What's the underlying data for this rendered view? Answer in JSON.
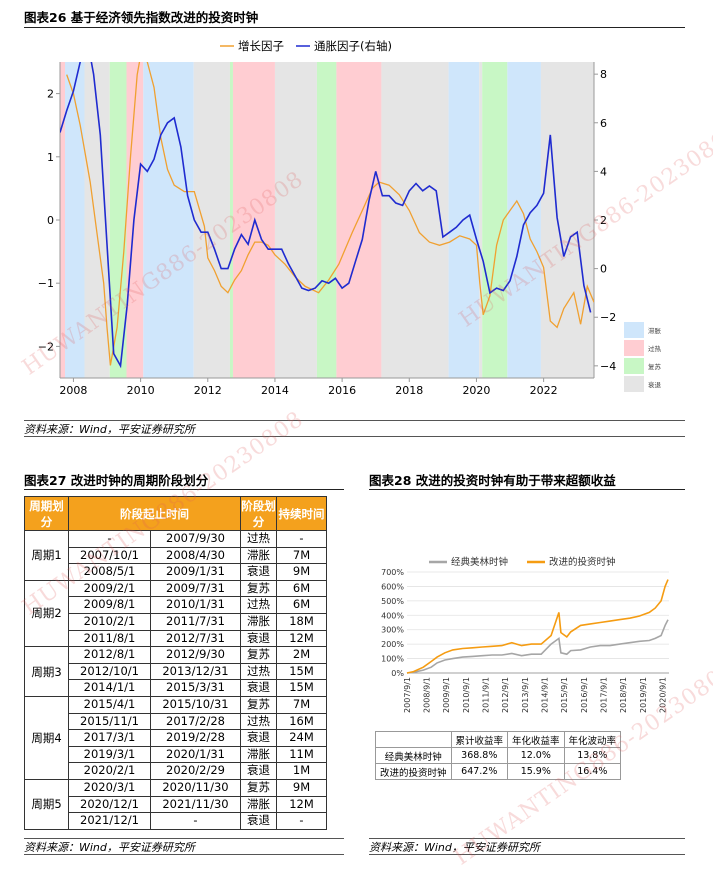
{
  "fig26": {
    "title": "图表26    基于经济领先指数改进的投资时钟",
    "source": "资料来源：Wind，平安证券研究所"
  },
  "fig27": {
    "title": "图表27    改进时钟的周期阶段划分",
    "source": "资料来源：Wind，平安证券研究所"
  },
  "fig28": {
    "title": "图表28    改进的投资时钟有助于带来超额收益",
    "source": "资料来源：Wind，平安证券研究所"
  },
  "watermark": "HUWANTING886-20230808",
  "colors": {
    "growth": "#f0a030",
    "inflation": "#1f2bd0",
    "stagflation": "#cfe6fb",
    "overheat": "#ffcdd2",
    "recovery": "#c8f7c5",
    "recession": "#e5e5e5",
    "classic": "#a6a6a6",
    "improved": "#f59c12",
    "table_header": "#f4a11d"
  },
  "chart_data": [
    {
      "type": "line",
      "legend_position": "top",
      "x_ticks": [
        "2008",
        "2010",
        "2012",
        "2014",
        "2016",
        "2018",
        "2020",
        "2022"
      ],
      "x_range": [
        2007.6,
        2023.5
      ],
      "y_left_ticks": [
        "2",
        "1",
        "0",
        "−1",
        "−2"
      ],
      "y_left_range": [
        -2.5,
        2.5
      ],
      "y_right_ticks": [
        "8",
        "6",
        "4",
        "2",
        "0",
        "−2",
        "−4"
      ],
      "y_right_range": [
        -4.5,
        8.5
      ],
      "phase_legend": [
        "滞胀",
        "过热",
        "复苏",
        "衰退"
      ],
      "phases": [
        {
          "from": 2007.6,
          "to": 2007.75,
          "phase": "过热"
        },
        {
          "from": 2007.75,
          "to": 2008.33,
          "phase": "滞胀"
        },
        {
          "from": 2008.33,
          "to": 2009.08,
          "phase": "衰退"
        },
        {
          "from": 2009.08,
          "to": 2009.58,
          "phase": "复苏"
        },
        {
          "from": 2009.58,
          "to": 2010.08,
          "phase": "过热"
        },
        {
          "from": 2010.08,
          "to": 2011.58,
          "phase": "滞胀"
        },
        {
          "from": 2011.58,
          "to": 2012.66,
          "phase": "衰退"
        },
        {
          "from": 2012.66,
          "to": 2012.75,
          "phase": "复苏"
        },
        {
          "from": 2012.75,
          "to": 2014.0,
          "phase": "过热"
        },
        {
          "from": 2014.0,
          "to": 2015.25,
          "phase": "衰退"
        },
        {
          "from": 2015.25,
          "to": 2015.83,
          "phase": "复苏"
        },
        {
          "from": 2015.83,
          "to": 2017.17,
          "phase": "过热"
        },
        {
          "from": 2017.17,
          "to": 2019.17,
          "phase": "衰退"
        },
        {
          "from": 2019.17,
          "to": 2020.08,
          "phase": "滞胀"
        },
        {
          "from": 2020.08,
          "to": 2020.17,
          "phase": "衰退"
        },
        {
          "from": 2020.17,
          "to": 2020.92,
          "phase": "复苏"
        },
        {
          "from": 2020.92,
          "to": 2021.92,
          "phase": "滞胀"
        },
        {
          "from": 2021.92,
          "to": 2023.5,
          "phase": "衰退"
        }
      ],
      "series": [
        {
          "name": "增长因子",
          "axis": "left",
          "x": [
            2007.8,
            2008.0,
            2008.2,
            2008.5,
            2008.7,
            2008.9,
            2009.0,
            2009.1,
            2009.3,
            2009.5,
            2009.7,
            2009.9,
            2010.0,
            2010.2,
            2010.4,
            2010.6,
            2010.8,
            2011.0,
            2011.3,
            2011.6,
            2011.9,
            2012.0,
            2012.2,
            2012.4,
            2012.6,
            2012.8,
            2013.0,
            2013.2,
            2013.4,
            2013.6,
            2013.8,
            2014.0,
            2014.3,
            2014.6,
            2014.9,
            2015.1,
            2015.3,
            2015.6,
            2015.9,
            2016.1,
            2016.3,
            2016.6,
            2016.9,
            2017.1,
            2017.4,
            2017.7,
            2018.0,
            2018.3,
            2018.6,
            2018.9,
            2019.2,
            2019.5,
            2019.8,
            2020.0,
            2020.1,
            2020.2,
            2020.4,
            2020.6,
            2020.8,
            2021.0,
            2021.2,
            2021.4,
            2021.6,
            2021.8,
            2022.0,
            2022.2,
            2022.4,
            2022.6,
            2022.9,
            2023.1,
            2023.3,
            2023.5
          ],
          "y": [
            2.3,
            2.0,
            1.5,
            0.6,
            -0.2,
            -1.0,
            -1.7,
            -2.3,
            -1.7,
            -0.5,
            1.0,
            2.3,
            2.6,
            2.5,
            2.1,
            1.3,
            0.8,
            0.55,
            0.45,
            0.45,
            -0.1,
            -0.6,
            -0.8,
            -1.05,
            -1.15,
            -0.95,
            -0.8,
            -0.55,
            -0.35,
            -0.35,
            -0.4,
            -0.55,
            -0.7,
            -0.9,
            -1.05,
            -1.1,
            -1.15,
            -0.95,
            -0.7,
            -0.45,
            -0.2,
            0.15,
            0.5,
            0.6,
            0.55,
            0.4,
            0.15,
            -0.2,
            -0.35,
            -0.4,
            -0.35,
            -0.25,
            -0.3,
            -0.4,
            -1.0,
            -1.5,
            -1.2,
            -0.4,
            0.0,
            0.15,
            0.3,
            0.1,
            -0.3,
            -0.5,
            -0.75,
            -1.6,
            -1.7,
            -1.4,
            -1.15,
            -1.65,
            -1.05,
            -1.3
          ]
        },
        {
          "name": "通胀因子(右轴)",
          "axis": "right",
          "x": [
            2007.6,
            2007.8,
            2008.0,
            2008.2,
            2008.4,
            2008.6,
            2008.8,
            2009.0,
            2009.2,
            2009.4,
            2009.6,
            2009.8,
            2010.0,
            2010.2,
            2010.4,
            2010.6,
            2010.8,
            2011.0,
            2011.2,
            2011.4,
            2011.6,
            2011.8,
            2012.0,
            2012.2,
            2012.4,
            2012.6,
            2012.8,
            2013.0,
            2013.2,
            2013.4,
            2013.6,
            2013.8,
            2014.0,
            2014.2,
            2014.4,
            2014.6,
            2014.8,
            2015.0,
            2015.2,
            2015.4,
            2015.6,
            2015.8,
            2016.0,
            2016.2,
            2016.4,
            2016.6,
            2016.8,
            2017.0,
            2017.2,
            2017.4,
            2017.6,
            2017.8,
            2018.0,
            2018.2,
            2018.4,
            2018.6,
            2018.8,
            2019.0,
            2019.2,
            2019.4,
            2019.6,
            2019.8,
            2020.0,
            2020.2,
            2020.4,
            2020.6,
            2020.8,
            2021.0,
            2021.2,
            2021.4,
            2021.6,
            2021.8,
            2022.0,
            2022.2,
            2022.4,
            2022.6,
            2022.8,
            2023.0,
            2023.2,
            2023.4
          ],
          "y": [
            5.6,
            6.5,
            7.3,
            8.5,
            9.5,
            8.0,
            5.5,
            1.0,
            -3.5,
            -4.0,
            -1.5,
            2.0,
            4.3,
            4.0,
            4.5,
            5.5,
            6.0,
            6.2,
            5.0,
            3.0,
            2.0,
            1.5,
            1.5,
            0.8,
            0.0,
            0.0,
            0.8,
            1.4,
            1.0,
            2.0,
            1.2,
            0.8,
            0.8,
            0.8,
            0.2,
            -0.3,
            -0.8,
            -0.9,
            -0.8,
            -0.5,
            -0.6,
            -0.4,
            -0.8,
            -0.6,
            0.3,
            1.2,
            2.8,
            4.0,
            3.0,
            3.0,
            2.7,
            2.6,
            3.2,
            3.5,
            3.2,
            3.4,
            3.2,
            1.3,
            1.5,
            1.7,
            2.0,
            2.2,
            1.2,
            0.3,
            -1.0,
            -0.8,
            -0.9,
            -0.5,
            0.5,
            1.8,
            2.3,
            2.6,
            3.1,
            5.5,
            2.1,
            0.5,
            1.3,
            1.5,
            -0.7,
            -1.8
          ]
        }
      ]
    },
    {
      "type": "line",
      "legend_position": "top",
      "y_ticks": [
        "700%",
        "600%",
        "500%",
        "400%",
        "300%",
        "200%",
        "100%",
        "0%"
      ],
      "y_range": [
        0,
        700
      ],
      "x_ticks": [
        "2007/9/1",
        "2008/9/1",
        "2009/9/1",
        "2010/9/1",
        "2011/9/1",
        "2012/9/1",
        "2013/9/1",
        "2014/9/1",
        "2015/9/1",
        "2016/9/1",
        "2017/9/1",
        "2018/9/1",
        "2019/9/1",
        "2020/9/1"
      ],
      "x_range": [
        2007.67,
        2021.0
      ],
      "series": [
        {
          "name": "经典美林时钟",
          "x": [
            2007.67,
            2008.0,
            2008.5,
            2008.9,
            2009.2,
            2009.6,
            2010.0,
            2010.5,
            2011.0,
            2011.5,
            2012.0,
            2012.5,
            2013.0,
            2013.5,
            2014.0,
            2014.5,
            2015.0,
            2015.4,
            2015.5,
            2015.8,
            2016.0,
            2016.5,
            2017.0,
            2017.5,
            2018.0,
            2018.5,
            2019.0,
            2019.5,
            2020.0,
            2020.3,
            2020.6,
            2020.8,
            2020.95
          ],
          "y": [
            0,
            5,
            20,
            40,
            70,
            90,
            100,
            110,
            115,
            120,
            125,
            125,
            135,
            120,
            130,
            130,
            200,
            240,
            140,
            130,
            155,
            160,
            180,
            190,
            190,
            200,
            210,
            220,
            225,
            240,
            260,
            330,
            368.8
          ]
        },
        {
          "name": "改进的投资时钟",
          "x": [
            2007.67,
            2008.0,
            2008.5,
            2008.9,
            2009.2,
            2009.6,
            2010.0,
            2010.5,
            2011.0,
            2011.5,
            2012.0,
            2012.5,
            2013.0,
            2013.5,
            2014.0,
            2014.5,
            2015.0,
            2015.4,
            2015.5,
            2015.8,
            2016.0,
            2016.5,
            2017.0,
            2017.5,
            2018.0,
            2018.5,
            2019.0,
            2019.5,
            2020.0,
            2020.3,
            2020.6,
            2020.8,
            2020.95
          ],
          "y": [
            0,
            10,
            40,
            80,
            110,
            140,
            160,
            170,
            175,
            180,
            185,
            190,
            210,
            190,
            200,
            200,
            260,
            420,
            280,
            250,
            285,
            330,
            340,
            350,
            360,
            370,
            380,
            395,
            420,
            450,
            500,
            600,
            647.2
          ]
        }
      ],
      "table": {
        "headers": [
          "",
          "累计收益率",
          "年化收益率",
          "年化波动率"
        ],
        "rows": [
          [
            "经典美林时钟",
            "368.8%",
            "12.0%",
            "13.8%"
          ],
          [
            "改进的投资时钟",
            "647.2%",
            "15.9%",
            "16.4%"
          ]
        ]
      }
    }
  ],
  "cycle_table": {
    "headers": [
      "周期划分",
      "阶段起止时间",
      "阶段划分",
      "持续时间"
    ],
    "cycles": [
      {
        "label": "周期1",
        "rows": [
          [
            "-",
            "2007/9/30",
            "过热",
            "-"
          ],
          [
            "2007/10/1",
            "2008/4/30",
            "滞胀",
            "7M"
          ],
          [
            "2008/5/1",
            "2009/1/31",
            "衰退",
            "9M"
          ]
        ]
      },
      {
        "label": "周期2",
        "rows": [
          [
            "2009/2/1",
            "2009/7/31",
            "复苏",
            "6M"
          ],
          [
            "2009/8/1",
            "2010/1/31",
            "过热",
            "6M"
          ],
          [
            "2010/2/1",
            "2011/7/31",
            "滞胀",
            "18M"
          ],
          [
            "2011/8/1",
            "2012/7/31",
            "衰退",
            "12M"
          ]
        ]
      },
      {
        "label": "周期3",
        "rows": [
          [
            "2012/8/1",
            "2012/9/30",
            "复苏",
            "2M"
          ],
          [
            "2012/10/1",
            "2013/12/31",
            "过热",
            "15M"
          ],
          [
            "2014/1/1",
            "2015/3/31",
            "衰退",
            "15M"
          ]
        ]
      },
      {
        "label": "周期4",
        "rows": [
          [
            "2015/4/1",
            "2015/10/31",
            "复苏",
            "7M"
          ],
          [
            "2015/11/1",
            "2017/2/28",
            "过热",
            "16M"
          ],
          [
            "2017/3/1",
            "2019/2/28",
            "衰退",
            "24M"
          ],
          [
            "2019/3/1",
            "2020/1/31",
            "滞胀",
            "11M"
          ],
          [
            "2020/2/1",
            "2020/2/29",
            "衰退",
            "1M"
          ]
        ]
      },
      {
        "label": "周期5",
        "rows": [
          [
            "2020/3/1",
            "2020/11/30",
            "复苏",
            "9M"
          ],
          [
            "2020/12/1",
            "2021/11/30",
            "滞胀",
            "12M"
          ],
          [
            "2021/12/1",
            "-",
            "衰退",
            "-"
          ]
        ]
      }
    ]
  }
}
